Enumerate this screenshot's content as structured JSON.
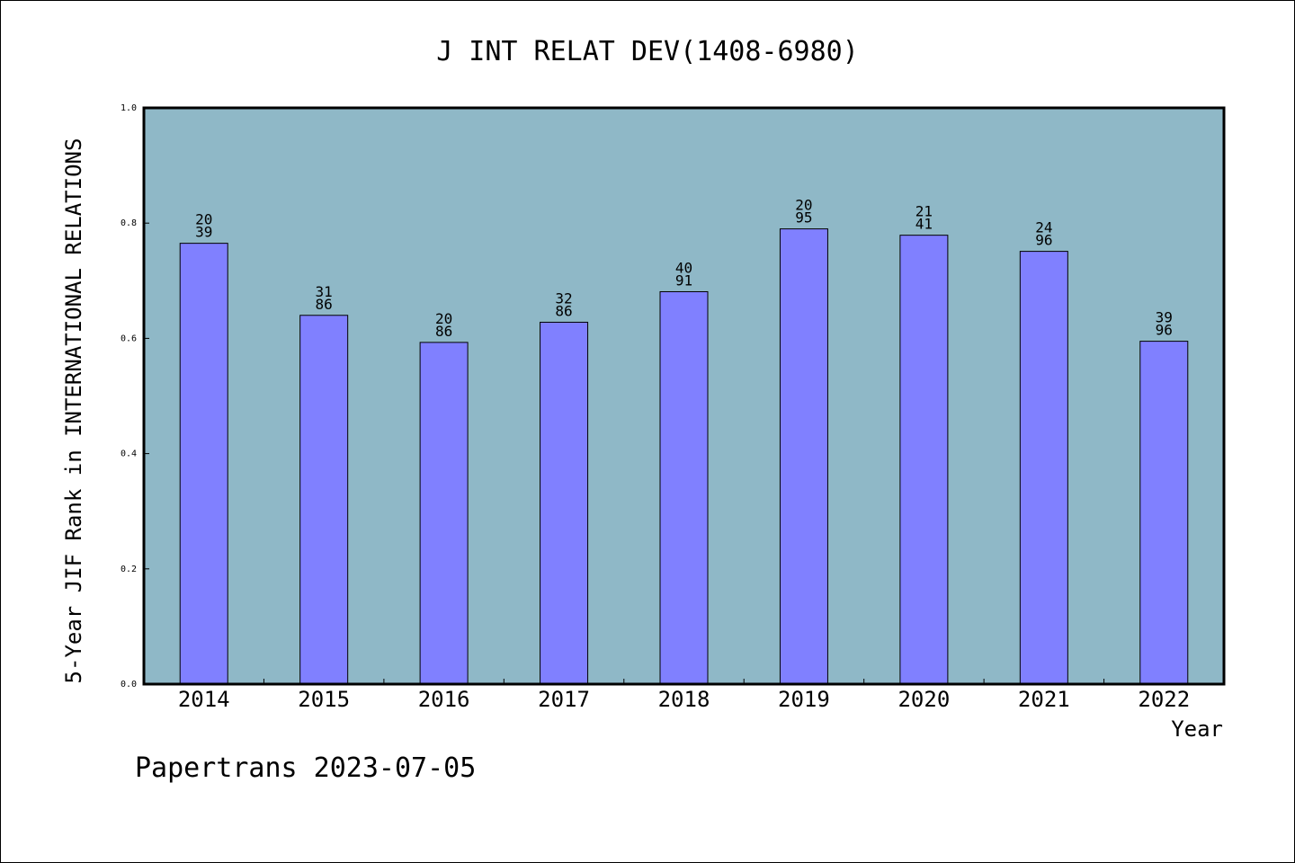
{
  "chart_data": {
    "type": "bar",
    "title": "J INT RELAT DEV(1408-6980)",
    "xlabel": "Year",
    "ylabel": "5-Year JIF Rank in INTERNATIONAL RELATIONS",
    "categories": [
      "2014",
      "2015",
      "2016",
      "2017",
      "2018",
      "2019",
      "2020",
      "2021",
      "2022"
    ],
    "values": [
      0.765,
      0.64,
      0.593,
      0.628,
      0.681,
      0.79,
      0.779,
      0.751,
      0.595
    ],
    "bar_labels": [
      [
        "20",
        "39"
      ],
      [
        "31",
        "86"
      ],
      [
        "20",
        "86"
      ],
      [
        "32",
        "86"
      ],
      [
        "40",
        "91"
      ],
      [
        "20",
        "95"
      ],
      [
        "21",
        "41"
      ],
      [
        "24",
        "96"
      ],
      [
        "39",
        "96"
      ]
    ],
    "ylim": [
      0,
      1.0
    ],
    "yticks": [
      "0.0",
      "0.2",
      "0.4",
      "0.6",
      "0.8",
      "1.0"
    ],
    "grid": false,
    "legend": "none",
    "colors": {
      "plot_background": "#8fb8c7",
      "bar_fill": "#8080ff",
      "bar_stroke": "#000000"
    }
  },
  "footer": {
    "credit": "Papertrans 2023-07-05"
  }
}
